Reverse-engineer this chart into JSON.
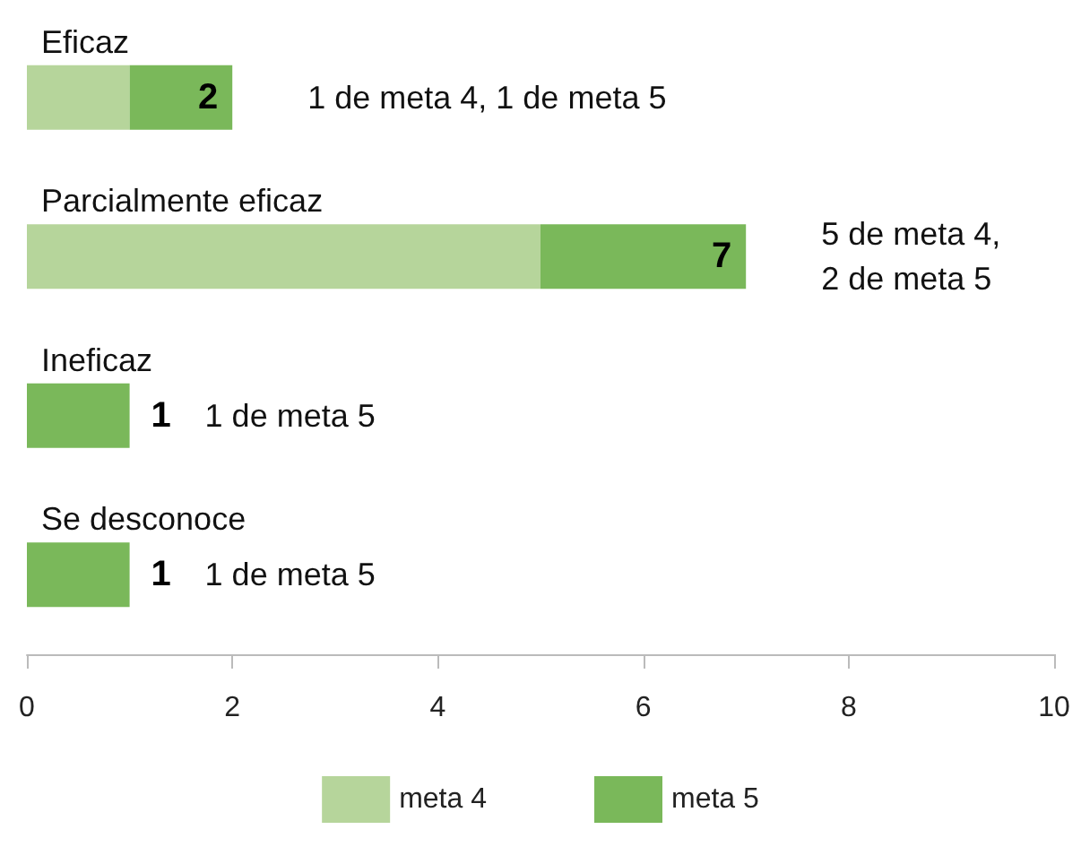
{
  "chart_data": {
    "type": "bar",
    "orientation": "horizontal",
    "stacked": true,
    "categories": [
      "Eficaz",
      "Parcialmente eficaz",
      "Ineficaz",
      "Se desconoce"
    ],
    "series": [
      {
        "name": "meta 4",
        "color": "#b6d59b",
        "values": [
          1,
          5,
          0,
          0
        ]
      },
      {
        "name": "meta 5",
        "color": "#7ab85a",
        "values": [
          1,
          2,
          1,
          1
        ]
      }
    ],
    "totals": [
      "2",
      "7",
      "1",
      "1"
    ],
    "annotations": [
      {
        "text": "1 de meta 4, 1 de meta 5",
        "x": 2,
        "y": "Eficaz"
      },
      {
        "text": "5 de meta 4,\n2 de meta 5",
        "x": 7,
        "y": "Parcialmente eficaz"
      },
      {
        "text": "1 de meta 5",
        "x": 1,
        "y": "Ineficaz"
      },
      {
        "text": "1 de meta 5",
        "x": 1,
        "y": "Se desconoce"
      }
    ],
    "xlim": [
      0,
      10
    ],
    "xticks": [
      0,
      2,
      4,
      6,
      8,
      10
    ],
    "grid": false,
    "legend": "bottom"
  }
}
